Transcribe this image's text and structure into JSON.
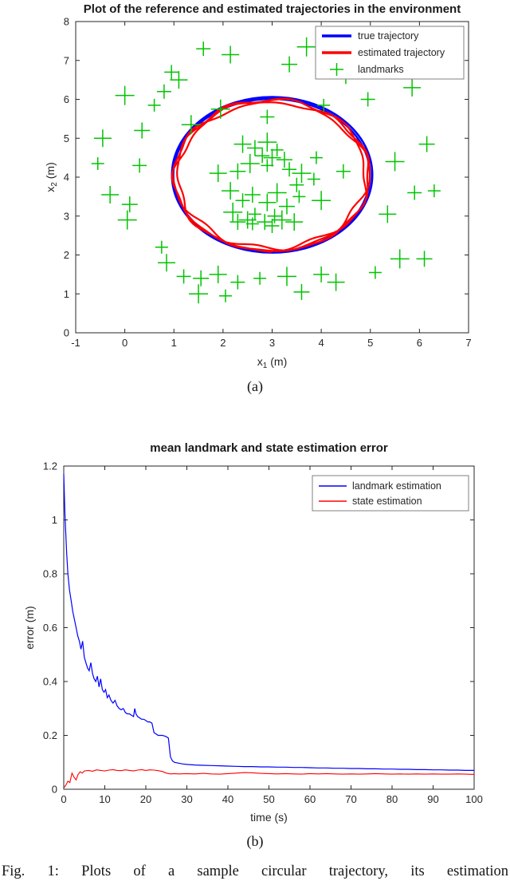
{
  "figure": {
    "label_a": "(a)",
    "label_b": "(b)",
    "caption": "Fig. 1: Plots of a sample circular trajectory, its estimation"
  },
  "chart_data": [
    {
      "type": "line+scatter",
      "title": "Plot of the reference and estimated trajectories in the environment",
      "xlabel": "x_1 (m)",
      "ylabel": "x_2 (m)",
      "xlim": [
        -1,
        7
      ],
      "ylim": [
        0,
        8
      ],
      "xticks": [
        -1,
        0,
        1,
        2,
        3,
        4,
        5,
        6,
        7
      ],
      "yticks": [
        0,
        1,
        2,
        3,
        4,
        5,
        6,
        7,
        8
      ],
      "grid": false,
      "legend": [
        "true trajectory",
        "estimated trajectory",
        "landmarks"
      ],
      "legend_position": "top-right",
      "colors": {
        "true_trajectory": "#0000FF",
        "est_trajectory": "#FF0000",
        "landmarks": "#00C400",
        "axis": "#262626"
      },
      "true_trajectory": {
        "center": [
          3.0,
          4.06
        ],
        "rx": 2.04,
        "ry": 2.0,
        "loops": 2
      },
      "est_trajectory": {
        "center": [
          2.99,
          4.04
        ],
        "rx": 1.96,
        "ry": 1.92,
        "loops": 3,
        "noise": [
          [
            0.05,
            3.3,
            0.5
          ],
          [
            0.035,
            6.7,
            1.3
          ],
          [
            0.028,
            11.1,
            4.0
          ]
        ]
      },
      "landmarks": [
        [
          1.6,
          7.3
        ],
        [
          2.15,
          7.15
        ],
        [
          3.35,
          6.9
        ],
        [
          3.7,
          7.35
        ],
        [
          4.15,
          7.05
        ],
        [
          0.95,
          6.7
        ],
        [
          1.1,
          6.5
        ],
        [
          4.5,
          6.6
        ],
        [
          0.0,
          6.1
        ],
        [
          0.6,
          5.85
        ],
        [
          0.8,
          6.2
        ],
        [
          -0.45,
          5.0
        ],
        [
          0.35,
          5.2
        ],
        [
          1.35,
          5.35
        ],
        [
          -0.55,
          4.35
        ],
        [
          0.3,
          4.3
        ],
        [
          -0.3,
          3.55
        ],
        [
          0.1,
          3.3
        ],
        [
          0.05,
          2.9
        ],
        [
          0.75,
          2.2
        ],
        [
          4.95,
          6.0
        ],
        [
          5.85,
          6.3
        ],
        [
          6.15,
          4.85
        ],
        [
          5.5,
          4.4
        ],
        [
          6.3,
          3.65
        ],
        [
          5.9,
          3.6
        ],
        [
          5.35,
          3.05
        ],
        [
          6.1,
          1.9
        ],
        [
          5.6,
          1.9
        ],
        [
          5.1,
          1.55
        ],
        [
          4.45,
          4.15
        ],
        [
          4.3,
          1.3
        ],
        [
          3.6,
          1.05
        ],
        [
          3.3,
          1.45
        ],
        [
          2.75,
          1.4
        ],
        [
          2.3,
          1.3
        ],
        [
          1.9,
          1.5
        ],
        [
          1.55,
          1.4
        ],
        [
          1.5,
          1.0
        ],
        [
          2.05,
          0.95
        ],
        [
          1.2,
          1.45
        ],
        [
          0.85,
          1.8
        ],
        [
          4.0,
          1.5
        ],
        [
          1.95,
          5.75
        ],
        [
          4.05,
          5.85
        ],
        [
          2.9,
          5.55
        ],
        [
          2.4,
          4.85
        ],
        [
          2.65,
          4.75
        ],
        [
          2.9,
          4.9
        ],
        [
          3.1,
          4.7
        ],
        [
          2.8,
          4.55
        ],
        [
          3.0,
          4.5
        ],
        [
          3.25,
          4.45
        ],
        [
          2.55,
          4.35
        ],
        [
          2.9,
          4.3
        ],
        [
          3.35,
          4.2
        ],
        [
          1.9,
          4.1
        ],
        [
          2.3,
          4.15
        ],
        [
          3.6,
          4.1
        ],
        [
          3.85,
          3.95
        ],
        [
          3.5,
          3.8
        ],
        [
          2.15,
          3.65
        ],
        [
          2.6,
          3.55
        ],
        [
          3.1,
          3.6
        ],
        [
          3.55,
          3.5
        ],
        [
          2.4,
          3.4
        ],
        [
          2.9,
          3.35
        ],
        [
          3.3,
          3.25
        ],
        [
          2.2,
          3.1
        ],
        [
          2.65,
          3.05
        ],
        [
          3.05,
          3.0
        ],
        [
          2.5,
          2.9
        ],
        [
          2.85,
          2.85
        ],
        [
          3.2,
          2.9
        ],
        [
          2.6,
          2.8
        ],
        [
          3.0,
          2.75
        ],
        [
          3.45,
          2.85
        ],
        [
          2.3,
          2.85
        ],
        [
          4.0,
          3.4
        ],
        [
          3.9,
          4.5
        ]
      ]
    },
    {
      "type": "line",
      "title": "mean landmark and state estimation error",
      "xlabel": "time (s)",
      "ylabel": "error (m)",
      "xlim": [
        0,
        100
      ],
      "ylim": [
        0,
        1.2
      ],
      "xticks": [
        0,
        10,
        20,
        30,
        40,
        50,
        60,
        70,
        80,
        90,
        100
      ],
      "yticks": [
        0,
        0.2,
        0.4,
        0.6,
        0.8,
        1,
        1.2
      ],
      "ytick_labels": [
        "0",
        "0.2",
        "0.4",
        "0.6",
        "0.8",
        "1",
        "1.2"
      ],
      "grid": false,
      "legend": [
        "landmark estimation",
        "state estimation"
      ],
      "legend_position": "top-right",
      "colors": {
        "axis": "#262626"
      },
      "series": [
        {
          "name": "landmark estimation",
          "color": "#0000FF",
          "x": [
            0,
            0.3,
            0.7,
            1,
            1.4,
            1.8,
            2.2,
            2.6,
            3,
            3.4,
            3.8,
            4.2,
            4.6,
            5,
            5.4,
            5.8,
            6.2,
            6.6,
            7,
            7.4,
            7.8,
            8.2,
            8.6,
            9,
            9.4,
            9.8,
            10.2,
            10.6,
            11,
            11.5,
            12,
            12.5,
            13,
            13.5,
            14,
            14.5,
            15,
            15.5,
            16,
            16.5,
            17,
            17.3,
            17.6,
            18,
            18.5,
            19,
            19.5,
            20,
            20.5,
            21,
            21.5,
            22,
            22.5,
            23,
            23.5,
            24,
            24.5,
            25,
            25.5,
            26,
            26.5,
            27,
            28,
            29,
            30,
            32,
            34,
            36,
            38,
            40,
            42,
            44,
            46,
            48,
            50,
            52,
            54,
            56,
            58,
            60,
            62,
            64,
            66,
            68,
            70,
            72,
            74,
            76,
            78,
            80,
            82,
            84,
            86,
            88,
            90,
            92,
            94,
            96,
            98,
            100
          ],
          "y": [
            1.17,
            1.02,
            0.88,
            0.8,
            0.74,
            0.7,
            0.66,
            0.63,
            0.6,
            0.57,
            0.55,
            0.52,
            0.55,
            0.49,
            0.47,
            0.45,
            0.44,
            0.47,
            0.43,
            0.41,
            0.4,
            0.42,
            0.38,
            0.41,
            0.37,
            0.36,
            0.37,
            0.34,
            0.35,
            0.33,
            0.32,
            0.33,
            0.31,
            0.3,
            0.295,
            0.3,
            0.285,
            0.28,
            0.28,
            0.275,
            0.27,
            0.3,
            0.28,
            0.27,
            0.265,
            0.26,
            0.26,
            0.255,
            0.25,
            0.25,
            0.245,
            0.21,
            0.205,
            0.2,
            0.2,
            0.2,
            0.198,
            0.195,
            0.19,
            0.12,
            0.105,
            0.1,
            0.097,
            0.094,
            0.092,
            0.09,
            0.089,
            0.088,
            0.087,
            0.086,
            0.085,
            0.084,
            0.084,
            0.083,
            0.083,
            0.082,
            0.082,
            0.081,
            0.081,
            0.08,
            0.079,
            0.079,
            0.078,
            0.078,
            0.077,
            0.077,
            0.076,
            0.076,
            0.075,
            0.075,
            0.074,
            0.074,
            0.073,
            0.073,
            0.072,
            0.072,
            0.071,
            0.071,
            0.07,
            0.07
          ]
        },
        {
          "name": "state estimation",
          "color": "#FF0000",
          "x": [
            0,
            0.5,
            1,
            1.5,
            2,
            2.5,
            3,
            3.5,
            4,
            4.5,
            5,
            6,
            7,
            8,
            9,
            10,
            11,
            12,
            13,
            14,
            15,
            16,
            17,
            18,
            19,
            20,
            21,
            22,
            23,
            24,
            25,
            26,
            27,
            28,
            30,
            32,
            34,
            36,
            38,
            40,
            42,
            44,
            46,
            48,
            50,
            52,
            54,
            56,
            58,
            60,
            62,
            64,
            66,
            68,
            70,
            72,
            74,
            76,
            78,
            80,
            82,
            84,
            86,
            88,
            90,
            92,
            94,
            96,
            98,
            100
          ],
          "y": [
            0.005,
            0.015,
            0.03,
            0.025,
            0.06,
            0.045,
            0.035,
            0.055,
            0.065,
            0.06,
            0.068,
            0.07,
            0.067,
            0.072,
            0.07,
            0.068,
            0.071,
            0.073,
            0.07,
            0.069,
            0.072,
            0.07,
            0.068,
            0.071,
            0.073,
            0.07,
            0.072,
            0.071,
            0.069,
            0.066,
            0.06,
            0.057,
            0.058,
            0.057,
            0.058,
            0.057,
            0.059,
            0.057,
            0.056,
            0.058,
            0.06,
            0.062,
            0.061,
            0.059,
            0.058,
            0.057,
            0.058,
            0.057,
            0.056,
            0.058,
            0.057,
            0.058,
            0.057,
            0.056,
            0.057,
            0.056,
            0.057,
            0.058,
            0.057,
            0.056,
            0.057,
            0.056,
            0.057,
            0.056,
            0.057,
            0.056,
            0.056,
            0.057,
            0.056,
            0.055
          ]
        }
      ]
    }
  ]
}
